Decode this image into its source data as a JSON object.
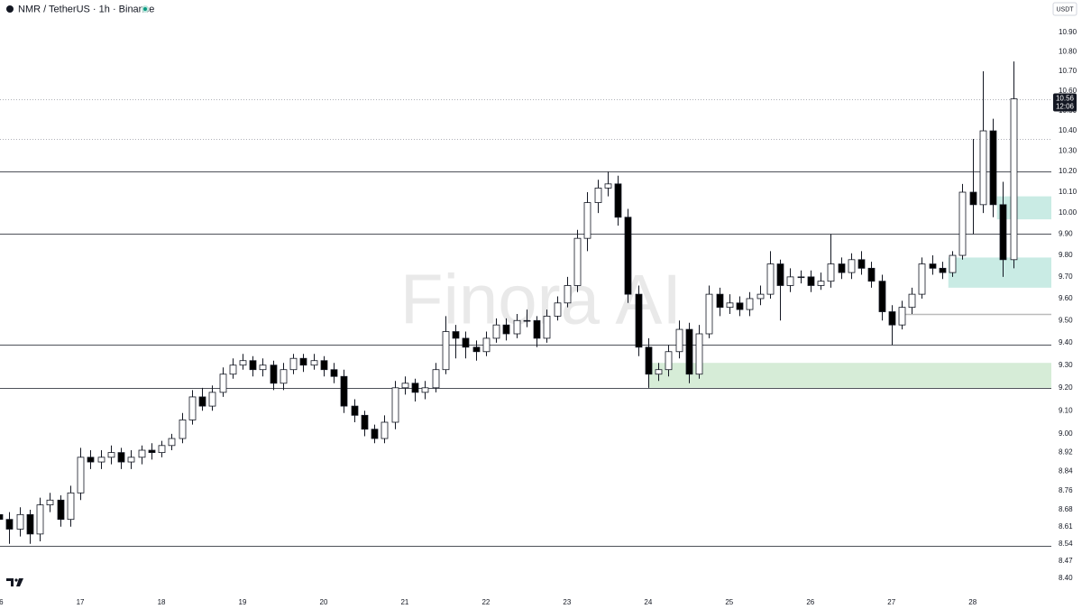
{
  "chart_data": {
    "type": "candlestick",
    "title": "NMR / TetherUS · 1h · Binance",
    "currency": "USDT",
    "watermark": "Finora AI",
    "log_scale": true,
    "grid": false,
    "up_color": "#ffffff",
    "down_color": "#000000",
    "xlim": [
      16.01,
      28.97
    ],
    "xticks": [
      16,
      17,
      18,
      19,
      20,
      21,
      22,
      23,
      24,
      25,
      26,
      27,
      28
    ],
    "ylim": [
      8.35,
      11.07
    ],
    "yticks": [
      {
        "value": 10.9,
        "label": "10.90"
      },
      {
        "value": 10.8,
        "label": "10.80"
      },
      {
        "value": 10.7,
        "label": "10.70"
      },
      {
        "value": 10.6,
        "label": "10.60"
      },
      {
        "value": 10.5,
        "label": "10.50"
      },
      {
        "value": 10.4,
        "label": "10.40"
      },
      {
        "value": 10.3,
        "label": "10.30"
      },
      {
        "value": 10.2,
        "label": "10.20"
      },
      {
        "value": 10.1,
        "label": "10.10"
      },
      {
        "value": 10,
        "label": "10.00"
      },
      {
        "value": 9.9,
        "label": "9.90"
      },
      {
        "value": 9.8,
        "label": "9.80"
      },
      {
        "value": 9.7,
        "label": "9.70"
      },
      {
        "value": 9.6,
        "label": "9.60"
      },
      {
        "value": 9.5,
        "label": "9.50"
      },
      {
        "value": 9.4,
        "label": "9.40"
      },
      {
        "value": 9.3,
        "label": "9.30"
      },
      {
        "value": 9.2,
        "label": "9.20"
      },
      {
        "value": 9.1,
        "label": "9.10"
      },
      {
        "value": 9,
        "label": "9.00"
      },
      8.92,
      8.84,
      8.76,
      8.68,
      8.61,
      8.54,
      8.47,
      {
        "value": 8.4,
        "label": "8.40"
      }
    ],
    "last_price": {
      "value": 10.56,
      "label": "10.56"
    },
    "countdown": "12:06",
    "lines": [
      {
        "value": 10.56,
        "style": "dotted"
      },
      {
        "value": 10.36,
        "style": "dotted"
      },
      {
        "value": 10.2,
        "style": "solid"
      },
      {
        "value": 9.9,
        "style": "solid"
      },
      {
        "value": 9.39,
        "style": "solid"
      },
      {
        "value": 9.2,
        "style": "solid"
      },
      {
        "value": 8.53,
        "style": "solid"
      }
    ],
    "segments": [
      {
        "value": 9.53,
        "from": 27.12,
        "to": 28.97,
        "color": "#bbbbbb"
      }
    ],
    "zones": [
      {
        "low": 9.2,
        "high": 9.31,
        "from": 24,
        "color": "#d6ecd7"
      },
      {
        "low": 9.65,
        "high": 9.79,
        "from": 27.7,
        "color": "#c9ebe4"
      },
      {
        "low": 9.97,
        "high": 10.08,
        "from": 28.3,
        "color": "#c9ebe4"
      }
    ],
    "x": [
      16,
      16.125,
      16.25,
      16.375,
      16.5,
      16.625,
      16.75,
      16.875,
      17,
      17.125,
      17.25,
      17.375,
      17.5,
      17.625,
      17.75,
      17.875,
      18,
      18.125,
      18.25,
      18.375,
      18.5,
      18.625,
      18.75,
      18.875,
      19,
      19.125,
      19.25,
      19.375,
      19.5,
      19.625,
      19.75,
      19.875,
      20,
      20.125,
      20.25,
      20.375,
      20.5,
      20.625,
      20.75,
      20.875,
      21,
      21.125,
      21.25,
      21.375,
      21.5,
      21.625,
      21.75,
      21.875,
      22,
      22.125,
      22.25,
      22.375,
      22.5,
      22.625,
      22.75,
      22.875,
      23,
      23.125,
      23.25,
      23.375,
      23.5,
      23.625,
      23.75,
      23.875,
      24,
      24.125,
      24.25,
      24.375,
      24.5,
      24.625,
      24.75,
      24.875,
      25,
      25.125,
      25.25,
      25.375,
      25.5,
      25.625,
      25.75,
      25.875,
      26,
      26.125,
      26.25,
      26.375,
      26.5,
      26.625,
      26.75,
      26.875,
      27,
      27.125,
      27.25,
      27.375,
      27.5,
      27.625,
      27.75,
      27.875,
      28,
      28.125,
      28.25,
      28.375,
      28.5
    ],
    "open": [
      8.66,
      8.64,
      8.6,
      8.66,
      8.58,
      8.7,
      8.72,
      8.64,
      8.75,
      8.9,
      8.88,
      8.9,
      8.92,
      8.88,
      8.9,
      8.93,
      8.92,
      8.95,
      8.98,
      9.06,
      9.16,
      9.12,
      9.18,
      9.26,
      9.3,
      9.32,
      9.28,
      9.3,
      9.22,
      9.28,
      9.33,
      9.3,
      9.32,
      9.28,
      9.25,
      9.12,
      9.08,
      9.02,
      8.98,
      9.05,
      9.2,
      9.22,
      9.18,
      9.2,
      9.28,
      9.45,
      9.42,
      9.38,
      9.36,
      9.42,
      9.48,
      9.44,
      9.5,
      9.5,
      9.42,
      9.52,
      9.58,
      9.66,
      9.88,
      10.05,
      10.12,
      10.14,
      9.98,
      9.62,
      9.38,
      9.26,
      9.28,
      9.36,
      9.46,
      9.26,
      9.44,
      9.62,
      9.56,
      9.58,
      9.55,
      9.6,
      9.62,
      9.76,
      9.66,
      9.7,
      9.7,
      9.66,
      9.68,
      9.76,
      9.72,
      9.78,
      9.74,
      9.68,
      9.54,
      9.48,
      9.56,
      9.62,
      9.76,
      9.74,
      9.72,
      9.8,
      10.1,
      10.04,
      10.4,
      10.04,
      9.78
    ],
    "high": [
      8.69,
      8.67,
      8.69,
      8.68,
      8.73,
      8.75,
      8.74,
      8.78,
      8.94,
      8.93,
      8.93,
      8.95,
      8.94,
      8.93,
      8.95,
      8.96,
      8.97,
      9.0,
      9.09,
      9.19,
      9.2,
      9.21,
      9.29,
      9.33,
      9.35,
      9.34,
      9.33,
      9.32,
      9.31,
      9.35,
      9.35,
      9.35,
      9.34,
      9.31,
      9.28,
      9.15,
      9.1,
      9.04,
      9.08,
      9.23,
      9.25,
      9.24,
      9.23,
      9.31,
      9.52,
      9.48,
      9.45,
      9.41,
      9.45,
      9.51,
      9.51,
      9.53,
      9.55,
      9.52,
      9.55,
      9.61,
      9.7,
      9.92,
      10.1,
      10.16,
      10.2,
      10.18,
      10.02,
      9.66,
      9.42,
      9.31,
      9.39,
      9.5,
      9.49,
      9.48,
      9.66,
      9.65,
      9.62,
      9.61,
      9.63,
      9.66,
      9.82,
      9.78,
      9.74,
      9.73,
      9.73,
      9.72,
      9.9,
      9.79,
      9.81,
      9.82,
      9.77,
      9.71,
      9.57,
      9.59,
      9.65,
      9.79,
      9.8,
      9.77,
      9.82,
      10.14,
      10.36,
      10.7,
      10.46,
      10.15,
      10.75
    ],
    "low": [
      8.58,
      8.54,
      8.57,
      8.54,
      8.55,
      8.67,
      8.61,
      8.61,
      8.72,
      8.85,
      8.85,
      8.87,
      8.85,
      8.85,
      8.87,
      8.89,
      8.9,
      8.93,
      8.96,
      9.04,
      9.1,
      9.1,
      9.16,
      9.24,
      9.28,
      9.25,
      9.25,
      9.19,
      9.19,
      9.26,
      9.27,
      9.28,
      9.25,
      9.22,
      9.09,
      9.05,
      8.99,
      8.96,
      8.96,
      9.02,
      9.17,
      9.14,
      9.15,
      9.18,
      9.26,
      9.33,
      9.33,
      9.32,
      9.34,
      9.4,
      9.41,
      9.42,
      9.47,
      9.38,
      9.4,
      9.5,
      9.56,
      9.63,
      9.82,
      10.0,
      10.08,
      9.94,
      9.58,
      9.34,
      9.2,
      9.23,
      9.25,
      9.33,
      9.22,
      9.24,
      9.42,
      9.52,
      9.53,
      9.52,
      9.52,
      9.57,
      9.6,
      9.5,
      9.63,
      9.67,
      9.63,
      9.64,
      9.65,
      9.69,
      9.69,
      9.71,
      9.65,
      9.5,
      9.39,
      9.46,
      9.53,
      9.6,
      9.71,
      9.69,
      9.7,
      9.78,
      9.9,
      10.0,
      9.98,
      9.7,
      9.74
    ],
    "close": [
      8.64,
      8.6,
      8.66,
      8.58,
      8.7,
      8.72,
      8.64,
      8.75,
      8.9,
      8.88,
      8.9,
      8.92,
      8.88,
      8.9,
      8.93,
      8.92,
      8.95,
      8.98,
      9.06,
      9.16,
      9.12,
      9.18,
      9.26,
      9.3,
      9.32,
      9.28,
      9.3,
      9.22,
      9.28,
      9.33,
      9.3,
      9.32,
      9.28,
      9.25,
      9.12,
      9.08,
      9.02,
      8.98,
      9.05,
      9.2,
      9.22,
      9.18,
      9.2,
      9.28,
      9.45,
      9.42,
      9.38,
      9.36,
      9.42,
      9.48,
      9.44,
      9.5,
      9.5,
      9.42,
      9.52,
      9.58,
      9.66,
      9.88,
      10.05,
      10.12,
      10.14,
      9.98,
      9.62,
      9.38,
      9.26,
      9.28,
      9.36,
      9.46,
      9.26,
      9.44,
      9.62,
      9.56,
      9.58,
      9.55,
      9.6,
      9.62,
      9.76,
      9.66,
      9.7,
      9.7,
      9.66,
      9.68,
      9.76,
      9.72,
      9.78,
      9.74,
      9.68,
      9.54,
      9.48,
      9.56,
      9.62,
      9.76,
      9.74,
      9.72,
      9.8,
      10.1,
      10.04,
      10.4,
      10.04,
      9.78,
      10.56
    ]
  }
}
